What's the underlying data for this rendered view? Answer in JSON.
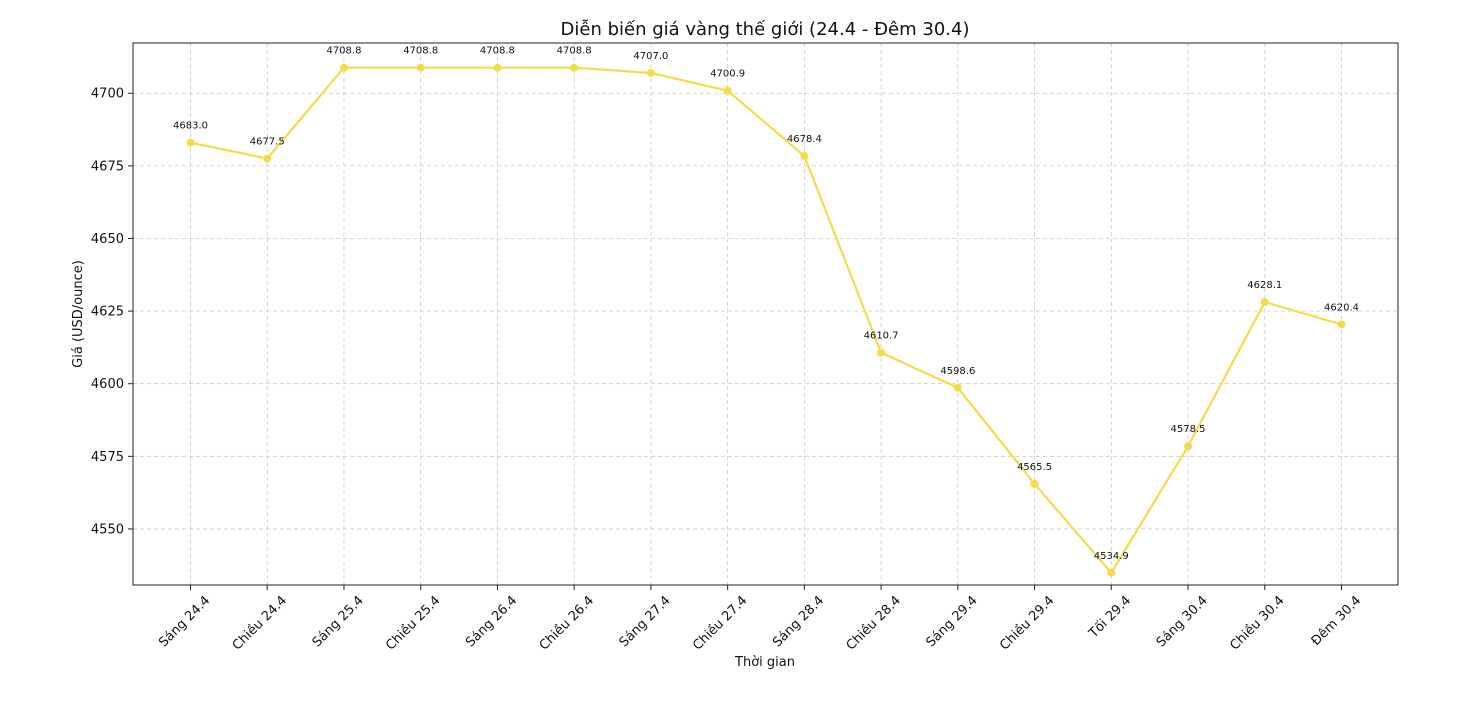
{
  "chart_data": {
    "type": "line",
    "title": "Diễn biến giá vàng thế giới (24.4 - Đêm 30.4)",
    "xlabel": "Thời gian",
    "ylabel": "Giá (USD/ounce)",
    "categories": [
      "Sáng 24.4",
      "Chiều 24.4",
      "Sáng 25.4",
      "Chiều 25.4",
      "Sáng 26.4",
      "Chiều 26.4",
      "Sáng 27.4",
      "Chiều 27.4",
      "Sáng 28.4",
      "Chiều 28.4",
      "Sáng 29.4",
      "Chiều 29.4",
      "Tối 29.4",
      "Sáng 30.4",
      "Chiều 30.4",
      "Đêm 30.4"
    ],
    "values": [
      4683.0,
      4677.5,
      4708.8,
      4708.8,
      4708.8,
      4708.8,
      4707.0,
      4700.9,
      4678.4,
      4610.7,
      4598.6,
      4565.5,
      4534.9,
      4578.5,
      4628.1,
      4620.4
    ],
    "data_labels": [
      "4683.0",
      "4677.5",
      "4708.8",
      "4708.8",
      "4708.8",
      "4708.8",
      "4707.0",
      "4700.9",
      "4678.4",
      "4610.7",
      "4598.6",
      "4565.5",
      "4534.9",
      "4578.5",
      "4628.1",
      "4620.4"
    ],
    "yticks": [
      4550,
      4575,
      4600,
      4625,
      4650,
      4675,
      4700
    ],
    "ylim": [
      4530.7,
      4717.3
    ],
    "grid": true,
    "color": "#F5DA4A"
  }
}
